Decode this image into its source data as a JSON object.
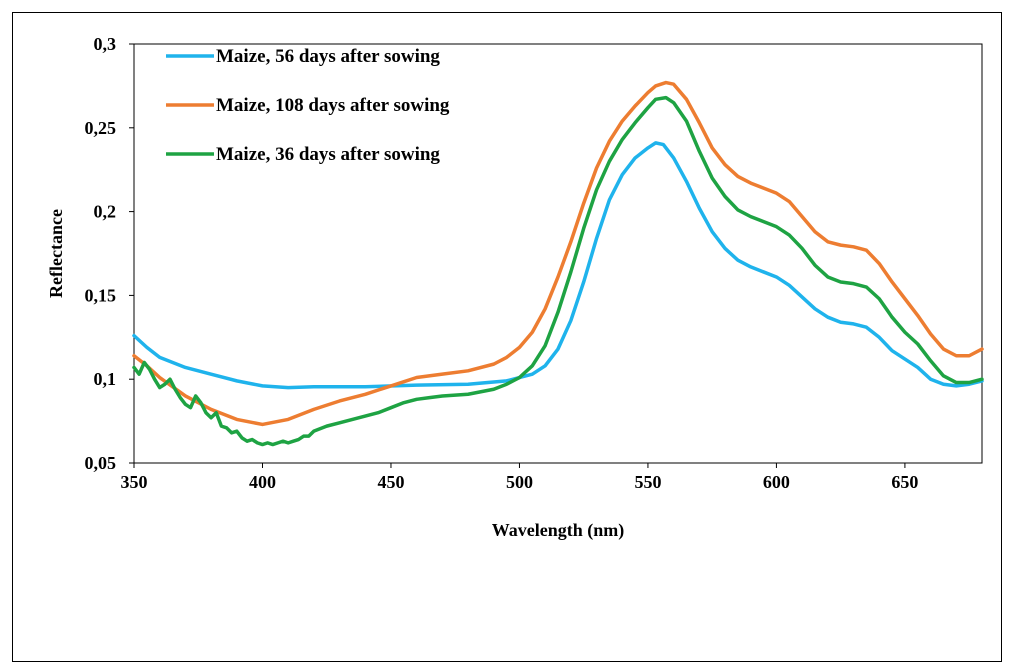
{
  "chart_data": {
    "type": "line",
    "title": "",
    "xlabel": "Wavelength (nm)",
    "ylabel": "Reflectance",
    "xlim": [
      350,
      680
    ],
    "ylim": [
      0.05,
      0.3
    ],
    "xticks": [
      350,
      400,
      450,
      500,
      550,
      600,
      650
    ],
    "xtick_labels": [
      "350",
      "400",
      "450",
      "500",
      "550",
      "600",
      "650"
    ],
    "yticks": [
      0.05,
      0.1,
      0.15,
      0.2,
      0.25,
      0.3
    ],
    "ytick_labels": [
      "0,05",
      "0,1",
      "0,15",
      "0,2",
      "0,25",
      "0,3"
    ],
    "grid": false,
    "legend_position": "top-left",
    "series": [
      {
        "name": "Maize, 56 days after sowing",
        "color": "#1fb3ec",
        "points": [
          [
            350,
            0.126
          ],
          [
            355,
            0.119
          ],
          [
            360,
            0.113
          ],
          [
            370,
            0.107
          ],
          [
            380,
            0.103
          ],
          [
            390,
            0.099
          ],
          [
            400,
            0.096
          ],
          [
            410,
            0.095
          ],
          [
            420,
            0.0955
          ],
          [
            440,
            0.0955
          ],
          [
            460,
            0.0965
          ],
          [
            480,
            0.097
          ],
          [
            495,
            0.099
          ],
          [
            505,
            0.103
          ],
          [
            510,
            0.108
          ],
          [
            515,
            0.118
          ],
          [
            520,
            0.135
          ],
          [
            525,
            0.158
          ],
          [
            530,
            0.184
          ],
          [
            535,
            0.207
          ],
          [
            540,
            0.222
          ],
          [
            545,
            0.232
          ],
          [
            550,
            0.238
          ],
          [
            553,
            0.241
          ],
          [
            556,
            0.24
          ],
          [
            560,
            0.232
          ],
          [
            565,
            0.218
          ],
          [
            570,
            0.202
          ],
          [
            575,
            0.188
          ],
          [
            580,
            0.178
          ],
          [
            585,
            0.171
          ],
          [
            590,
            0.167
          ],
          [
            595,
            0.164
          ],
          [
            600,
            0.161
          ],
          [
            605,
            0.156
          ],
          [
            610,
            0.149
          ],
          [
            615,
            0.142
          ],
          [
            620,
            0.137
          ],
          [
            625,
            0.134
          ],
          [
            630,
            0.133
          ],
          [
            635,
            0.131
          ],
          [
            640,
            0.125
          ],
          [
            645,
            0.117
          ],
          [
            650,
            0.112
          ],
          [
            655,
            0.107
          ],
          [
            660,
            0.1
          ],
          [
            665,
            0.097
          ],
          [
            670,
            0.096
          ],
          [
            675,
            0.097
          ],
          [
            680,
            0.099
          ]
        ]
      },
      {
        "name": "Maize, 108 days after sowing",
        "color": "#ed7d31",
        "points": [
          [
            350,
            0.114
          ],
          [
            355,
            0.108
          ],
          [
            360,
            0.101
          ],
          [
            370,
            0.09
          ],
          [
            380,
            0.082
          ],
          [
            390,
            0.076
          ],
          [
            400,
            0.073
          ],
          [
            410,
            0.076
          ],
          [
            420,
            0.082
          ],
          [
            430,
            0.087
          ],
          [
            440,
            0.091
          ],
          [
            450,
            0.096
          ],
          [
            460,
            0.101
          ],
          [
            470,
            0.103
          ],
          [
            480,
            0.105
          ],
          [
            490,
            0.109
          ],
          [
            495,
            0.113
          ],
          [
            500,
            0.119
          ],
          [
            505,
            0.128
          ],
          [
            510,
            0.142
          ],
          [
            515,
            0.161
          ],
          [
            520,
            0.182
          ],
          [
            525,
            0.205
          ],
          [
            530,
            0.226
          ],
          [
            535,
            0.242
          ],
          [
            540,
            0.254
          ],
          [
            545,
            0.263
          ],
          [
            550,
            0.271
          ],
          [
            553,
            0.275
          ],
          [
            557,
            0.277
          ],
          [
            560,
            0.276
          ],
          [
            565,
            0.267
          ],
          [
            570,
            0.253
          ],
          [
            575,
            0.238
          ],
          [
            580,
            0.228
          ],
          [
            585,
            0.221
          ],
          [
            590,
            0.217
          ],
          [
            595,
            0.214
          ],
          [
            600,
            0.211
          ],
          [
            605,
            0.206
          ],
          [
            610,
            0.197
          ],
          [
            615,
            0.188
          ],
          [
            620,
            0.182
          ],
          [
            625,
            0.18
          ],
          [
            630,
            0.179
          ],
          [
            635,
            0.177
          ],
          [
            640,
            0.169
          ],
          [
            645,
            0.158
          ],
          [
            650,
            0.148
          ],
          [
            655,
            0.138
          ],
          [
            660,
            0.127
          ],
          [
            665,
            0.118
          ],
          [
            670,
            0.114
          ],
          [
            675,
            0.114
          ],
          [
            680,
            0.118
          ]
        ]
      },
      {
        "name": "Maize, 36 days after sowing",
        "color": "#1ea343",
        "points": [
          [
            350,
            0.107
          ],
          [
            352,
            0.103
          ],
          [
            354,
            0.11
          ],
          [
            356,
            0.106
          ],
          [
            358,
            0.1
          ],
          [
            360,
            0.095
          ],
          [
            362,
            0.097
          ],
          [
            364,
            0.1
          ],
          [
            366,
            0.094
          ],
          [
            368,
            0.089
          ],
          [
            370,
            0.085
          ],
          [
            372,
            0.083
          ],
          [
            374,
            0.09
          ],
          [
            376,
            0.086
          ],
          [
            378,
            0.08
          ],
          [
            380,
            0.077
          ],
          [
            382,
            0.08
          ],
          [
            384,
            0.072
          ],
          [
            386,
            0.071
          ],
          [
            388,
            0.068
          ],
          [
            390,
            0.069
          ],
          [
            392,
            0.065
          ],
          [
            394,
            0.063
          ],
          [
            396,
            0.064
          ],
          [
            398,
            0.062
          ],
          [
            400,
            0.061
          ],
          [
            402,
            0.062
          ],
          [
            404,
            0.061
          ],
          [
            406,
            0.062
          ],
          [
            408,
            0.063
          ],
          [
            410,
            0.062
          ],
          [
            412,
            0.063
          ],
          [
            414,
            0.064
          ],
          [
            416,
            0.066
          ],
          [
            418,
            0.066
          ],
          [
            420,
            0.069
          ],
          [
            425,
            0.072
          ],
          [
            430,
            0.074
          ],
          [
            435,
            0.076
          ],
          [
            440,
            0.078
          ],
          [
            445,
            0.08
          ],
          [
            450,
            0.083
          ],
          [
            455,
            0.086
          ],
          [
            460,
            0.088
          ],
          [
            465,
            0.089
          ],
          [
            470,
            0.09
          ],
          [
            480,
            0.091
          ],
          [
            490,
            0.094
          ],
          [
            495,
            0.097
          ],
          [
            500,
            0.101
          ],
          [
            505,
            0.108
          ],
          [
            510,
            0.12
          ],
          [
            515,
            0.14
          ],
          [
            520,
            0.164
          ],
          [
            525,
            0.19
          ],
          [
            530,
            0.213
          ],
          [
            535,
            0.23
          ],
          [
            540,
            0.243
          ],
          [
            545,
            0.253
          ],
          [
            550,
            0.262
          ],
          [
            553,
            0.267
          ],
          [
            557,
            0.268
          ],
          [
            560,
            0.265
          ],
          [
            565,
            0.254
          ],
          [
            570,
            0.236
          ],
          [
            575,
            0.22
          ],
          [
            580,
            0.209
          ],
          [
            585,
            0.201
          ],
          [
            590,
            0.197
          ],
          [
            595,
            0.194
          ],
          [
            600,
            0.191
          ],
          [
            605,
            0.186
          ],
          [
            610,
            0.178
          ],
          [
            615,
            0.168
          ],
          [
            620,
            0.161
          ],
          [
            625,
            0.158
          ],
          [
            630,
            0.157
          ],
          [
            635,
            0.155
          ],
          [
            640,
            0.148
          ],
          [
            645,
            0.137
          ],
          [
            650,
            0.128
          ],
          [
            655,
            0.121
          ],
          [
            660,
            0.111
          ],
          [
            665,
            0.102
          ],
          [
            670,
            0.098
          ],
          [
            675,
            0.098
          ],
          [
            680,
            0.1
          ]
        ]
      }
    ]
  }
}
